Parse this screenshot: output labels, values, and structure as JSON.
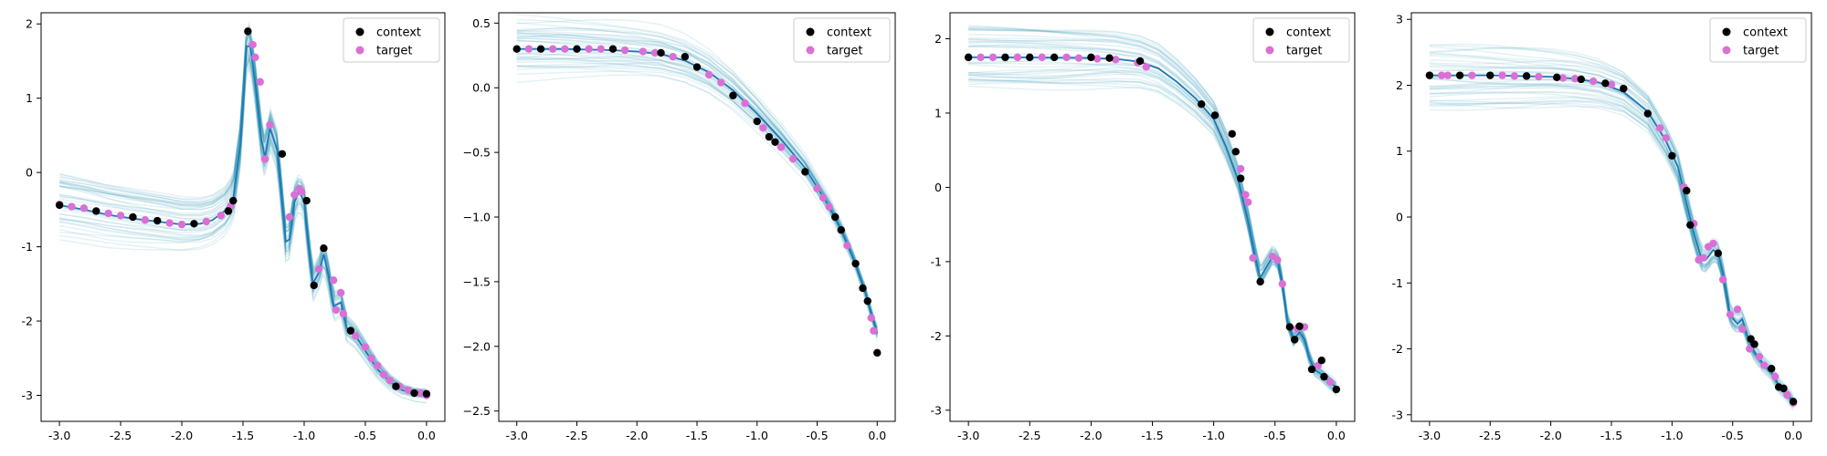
{
  "figure": {
    "legend": {
      "context_label": "context",
      "target_label": "target",
      "placement": "upper right"
    },
    "colors": {
      "context": "#000000",
      "target": "#da70d6",
      "mean": "#1f77b4",
      "samples": "#2a8fb0"
    }
  },
  "chart_data": [
    {
      "type": "line",
      "xlim": [
        -3.15,
        0.15
      ],
      "ylim": [
        -3.35,
        2.15
      ],
      "xticks": [
        "-3.0",
        "-2.5",
        "-2.0",
        "-1.5",
        "-1.0",
        "-0.5",
        "0.0"
      ],
      "xtick_values": [
        -3.0,
        -2.5,
        -2.0,
        -1.5,
        -1.0,
        -0.5,
        0.0
      ],
      "yticks": [
        "-3",
        "-2",
        "-1",
        "0",
        "1",
        "2"
      ],
      "ytick_values": [
        -3,
        -2,
        -1,
        0,
        1,
        2
      ],
      "mean_curve": [
        [
          -3.0,
          -0.44
        ],
        [
          -2.8,
          -0.5
        ],
        [
          -2.6,
          -0.57
        ],
        [
          -2.4,
          -0.62
        ],
        [
          -2.2,
          -0.66
        ],
        [
          -2.0,
          -0.7
        ],
        [
          -1.85,
          -0.69
        ],
        [
          -1.75,
          -0.64
        ],
        [
          -1.65,
          -0.52
        ],
        [
          -1.58,
          -0.35
        ],
        [
          -1.52,
          0.4
        ],
        [
          -1.47,
          1.7
        ],
        [
          -1.44,
          1.7
        ],
        [
          -1.4,
          1.2
        ],
        [
          -1.35,
          0.45
        ],
        [
          -1.32,
          0.2
        ],
        [
          -1.28,
          0.6
        ],
        [
          -1.22,
          0.3
        ],
        [
          -1.18,
          -0.4
        ],
        [
          -1.15,
          -0.93
        ],
        [
          -1.12,
          -0.9
        ],
        [
          -1.08,
          -0.4
        ],
        [
          -1.04,
          -0.25
        ],
        [
          -1.0,
          -0.4
        ],
        [
          -0.97,
          -0.9
        ],
        [
          -0.93,
          -1.5
        ],
        [
          -0.88,
          -1.35
        ],
        [
          -0.84,
          -1.1
        ],
        [
          -0.8,
          -1.4
        ],
        [
          -0.76,
          -1.8
        ],
        [
          -0.7,
          -1.75
        ],
        [
          -0.65,
          -2.1
        ],
        [
          -0.58,
          -2.2
        ],
        [
          -0.5,
          -2.4
        ],
        [
          -0.4,
          -2.65
        ],
        [
          -0.3,
          -2.82
        ],
        [
          -0.2,
          -2.93
        ],
        [
          -0.1,
          -2.98
        ],
        [
          0.0,
          -3.0
        ]
      ],
      "context_points": [
        [
          -3.0,
          -0.44
        ],
        [
          -2.7,
          -0.52
        ],
        [
          -2.4,
          -0.6
        ],
        [
          -2.2,
          -0.65
        ],
        [
          -1.9,
          -0.69
        ],
        [
          -1.62,
          -0.52
        ],
        [
          -1.58,
          -0.38
        ],
        [
          -1.46,
          1.9
        ],
        [
          -1.18,
          0.25
        ],
        [
          -0.98,
          -0.38
        ],
        [
          -0.92,
          -1.52
        ],
        [
          -0.84,
          -1.02
        ],
        [
          -0.62,
          -2.13
        ],
        [
          -0.25,
          -2.88
        ],
        [
          -0.1,
          -2.97
        ],
        [
          0.0,
          -2.98
        ]
      ],
      "target_points": [
        [
          -3.0,
          -0.43
        ],
        [
          -2.9,
          -0.46
        ],
        [
          -2.8,
          -0.48
        ],
        [
          -2.6,
          -0.55
        ],
        [
          -2.5,
          -0.58
        ],
        [
          -2.3,
          -0.64
        ],
        [
          -2.1,
          -0.68
        ],
        [
          -2.0,
          -0.7
        ],
        [
          -1.8,
          -0.66
        ],
        [
          -1.68,
          -0.58
        ],
        [
          -1.6,
          -0.45
        ],
        [
          -1.42,
          1.72
        ],
        [
          -1.4,
          1.55
        ],
        [
          -1.36,
          1.22
        ],
        [
          -1.32,
          0.18
        ],
        [
          -1.28,
          0.64
        ],
        [
          -1.12,
          -0.6
        ],
        [
          -1.08,
          -0.3
        ],
        [
          -1.04,
          -0.22
        ],
        [
          -1.02,
          -0.26
        ],
        [
          -0.88,
          -1.3
        ],
        [
          -0.76,
          -1.45
        ],
        [
          -0.74,
          -1.85
        ],
        [
          -0.7,
          -1.62
        ],
        [
          -0.68,
          -1.9
        ],
        [
          -0.58,
          -2.2
        ],
        [
          -0.5,
          -2.35
        ],
        [
          -0.45,
          -2.5
        ],
        [
          -0.4,
          -2.6
        ],
        [
          -0.35,
          -2.72
        ],
        [
          -0.3,
          -2.8
        ],
        [
          -0.22,
          -2.88
        ],
        [
          -0.15,
          -2.93
        ],
        [
          -0.05,
          -2.97
        ],
        [
          0.0,
          -3.0
        ]
      ]
    },
    {
      "type": "line",
      "xlim": [
        -3.15,
        0.15
      ],
      "ylim": [
        -2.58,
        0.58
      ],
      "xticks": [
        "-3.0",
        "-2.5",
        "-2.0",
        "-1.5",
        "-1.0",
        "-0.5",
        "0.0"
      ],
      "xtick_values": [
        -3.0,
        -2.5,
        -2.0,
        -1.5,
        -1.0,
        -0.5,
        0.0
      ],
      "yticks": [
        "−2.5",
        "−2.0",
        "−1.5",
        "−1.0",
        "−0.5",
        "0.0",
        "0.5"
      ],
      "ytick_values": [
        -2.5,
        -2.0,
        -1.5,
        -1.0,
        -0.5,
        0.0,
        0.5
      ],
      "mean_curve": [
        [
          -3.0,
          0.3
        ],
        [
          -2.6,
          0.3
        ],
        [
          -2.2,
          0.29
        ],
        [
          -2.0,
          0.28
        ],
        [
          -1.8,
          0.26
        ],
        [
          -1.6,
          0.21
        ],
        [
          -1.4,
          0.12
        ],
        [
          -1.2,
          -0.02
        ],
        [
          -1.0,
          -0.2
        ],
        [
          -0.8,
          -0.4
        ],
        [
          -0.6,
          -0.62
        ],
        [
          -0.4,
          -0.92
        ],
        [
          -0.3,
          -1.1
        ],
        [
          -0.2,
          -1.32
        ],
        [
          -0.1,
          -1.58
        ],
        [
          -0.05,
          -1.75
        ],
        [
          0.0,
          -1.9
        ]
      ],
      "context_points": [
        [
          -3.0,
          0.3
        ],
        [
          -2.8,
          0.3
        ],
        [
          -2.5,
          0.3
        ],
        [
          -2.2,
          0.3
        ],
        [
          -1.8,
          0.27
        ],
        [
          -1.6,
          0.24
        ],
        [
          -1.5,
          0.16
        ],
        [
          -1.2,
          -0.06
        ],
        [
          -1.0,
          -0.26
        ],
        [
          -0.9,
          -0.38
        ],
        [
          -0.85,
          -0.42
        ],
        [
          -0.6,
          -0.65
        ],
        [
          -0.35,
          -1.0
        ],
        [
          -0.3,
          -1.1
        ],
        [
          -0.18,
          -1.36
        ],
        [
          -0.12,
          -1.55
        ],
        [
          -0.08,
          -1.65
        ],
        [
          0.0,
          -2.05
        ]
      ],
      "target_points": [
        [
          -2.9,
          0.3
        ],
        [
          -2.7,
          0.3
        ],
        [
          -2.6,
          0.3
        ],
        [
          -2.4,
          0.3
        ],
        [
          -2.3,
          0.3
        ],
        [
          -2.1,
          0.29
        ],
        [
          -1.95,
          0.28
        ],
        [
          -1.85,
          0.27
        ],
        [
          -1.7,
          0.24
        ],
        [
          -1.4,
          0.1
        ],
        [
          -1.3,
          0.04
        ],
        [
          -1.1,
          -0.12
        ],
        [
          -0.95,
          -0.31
        ],
        [
          -0.8,
          -0.46
        ],
        [
          -0.7,
          -0.55
        ],
        [
          -0.5,
          -0.78
        ],
        [
          -0.45,
          -0.85
        ],
        [
          -0.4,
          -0.92
        ],
        [
          -0.25,
          -1.22
        ],
        [
          -0.05,
          -1.78
        ],
        [
          -0.03,
          -1.88
        ]
      ]
    },
    {
      "type": "line",
      "xlim": [
        -3.15,
        0.15
      ],
      "ylim": [
        -3.15,
        2.35
      ],
      "xticks": [
        "-3.0",
        "-2.5",
        "-2.0",
        "-1.5",
        "-1.0",
        "-0.5",
        "0.0"
      ],
      "xtick_values": [
        -3.0,
        -2.5,
        -2.0,
        -1.5,
        -1.0,
        -0.5,
        0.0
      ],
      "yticks": [
        "-3",
        "-2",
        "-1",
        "0",
        "1",
        "2"
      ],
      "ytick_values": [
        -3,
        -2,
        -1,
        0,
        1,
        2
      ],
      "mean_curve": [
        [
          -3.0,
          1.75
        ],
        [
          -2.5,
          1.75
        ],
        [
          -2.0,
          1.74
        ],
        [
          -1.8,
          1.73
        ],
        [
          -1.6,
          1.69
        ],
        [
          -1.45,
          1.6
        ],
        [
          -1.3,
          1.42
        ],
        [
          -1.15,
          1.2
        ],
        [
          -1.0,
          0.92
        ],
        [
          -0.9,
          0.55
        ],
        [
          -0.8,
          0.1
        ],
        [
          -0.72,
          -0.45
        ],
        [
          -0.66,
          -0.95
        ],
        [
          -0.62,
          -1.22
        ],
        [
          -0.58,
          -1.1
        ],
        [
          -0.52,
          -0.93
        ],
        [
          -0.48,
          -0.98
        ],
        [
          -0.44,
          -1.3
        ],
        [
          -0.4,
          -1.8
        ],
        [
          -0.35,
          -2.05
        ],
        [
          -0.3,
          -1.95
        ],
        [
          -0.26,
          -2.05
        ],
        [
          -0.22,
          -2.3
        ],
        [
          -0.18,
          -2.45
        ],
        [
          -0.12,
          -2.52
        ],
        [
          -0.08,
          -2.58
        ],
        [
          0.0,
          -2.7
        ]
      ],
      "context_points": [
        [
          -3.0,
          1.75
        ],
        [
          -2.7,
          1.75
        ],
        [
          -2.5,
          1.75
        ],
        [
          -2.3,
          1.75
        ],
        [
          -2.0,
          1.75
        ],
        [
          -1.85,
          1.74
        ],
        [
          -1.6,
          1.7
        ],
        [
          -1.1,
          1.12
        ],
        [
          -0.99,
          0.97
        ],
        [
          -0.85,
          0.72
        ],
        [
          -0.82,
          0.48
        ],
        [
          -0.78,
          0.12
        ],
        [
          -0.62,
          -1.27
        ],
        [
          -0.38,
          -1.88
        ],
        [
          -0.34,
          -2.05
        ],
        [
          -0.3,
          -1.87
        ],
        [
          -0.2,
          -2.45
        ],
        [
          -0.12,
          -2.33
        ],
        [
          -0.1,
          -2.55
        ],
        [
          0.0,
          -2.72
        ]
      ],
      "target_points": [
        [
          -3.0,
          1.75
        ],
        [
          -2.9,
          1.75
        ],
        [
          -2.8,
          1.75
        ],
        [
          -2.6,
          1.75
        ],
        [
          -2.4,
          1.75
        ],
        [
          -2.2,
          1.75
        ],
        [
          -2.1,
          1.74
        ],
        [
          -1.95,
          1.73
        ],
        [
          -1.8,
          1.72
        ],
        [
          -1.62,
          1.68
        ],
        [
          -1.55,
          1.62
        ],
        [
          -0.78,
          0.25
        ],
        [
          -0.74,
          -0.1
        ],
        [
          -0.72,
          -0.2
        ],
        [
          -0.68,
          -0.95
        ],
        [
          -0.52,
          -0.93
        ],
        [
          -0.48,
          -0.98
        ],
        [
          -0.44,
          -1.3
        ],
        [
          -0.32,
          -1.9
        ],
        [
          -0.26,
          -1.88
        ],
        [
          -0.15,
          -2.4
        ],
        [
          -0.05,
          -2.62
        ]
      ]
    },
    {
      "type": "line",
      "xlim": [
        -3.15,
        0.15
      ],
      "ylim": [
        -3.1,
        3.1
      ],
      "xticks": [
        "-3.0",
        "-2.5",
        "-2.0",
        "-1.5",
        "-1.0",
        "-0.5",
        "0.0"
      ],
      "xtick_values": [
        -3.0,
        -2.5,
        -2.0,
        -1.5,
        -1.0,
        -0.5,
        0.0
      ],
      "yticks": [
        "-3",
        "-2",
        "-1",
        "0",
        "1",
        "2",
        "3"
      ],
      "ytick_values": [
        -3,
        -2,
        -1,
        0,
        1,
        2,
        3
      ],
      "mean_curve": [
        [
          -3.0,
          2.15
        ],
        [
          -2.5,
          2.15
        ],
        [
          -2.0,
          2.13
        ],
        [
          -1.8,
          2.1
        ],
        [
          -1.6,
          2.04
        ],
        [
          -1.4,
          1.9
        ],
        [
          -1.2,
          1.6
        ],
        [
          -1.05,
          1.15
        ],
        [
          -0.95,
          0.75
        ],
        [
          -0.88,
          0.2
        ],
        [
          -0.82,
          -0.25
        ],
        [
          -0.76,
          -0.62
        ],
        [
          -0.72,
          -0.65
        ],
        [
          -0.66,
          -0.5
        ],
        [
          -0.62,
          -0.55
        ],
        [
          -0.58,
          -0.85
        ],
        [
          -0.52,
          -1.5
        ],
        [
          -0.46,
          -1.62
        ],
        [
          -0.42,
          -1.55
        ],
        [
          -0.38,
          -1.8
        ],
        [
          -0.32,
          -2.05
        ],
        [
          -0.25,
          -2.22
        ],
        [
          -0.18,
          -2.35
        ],
        [
          -0.12,
          -2.55
        ],
        [
          -0.05,
          -2.68
        ],
        [
          0.0,
          -2.8
        ]
      ],
      "context_points": [
        [
          -3.0,
          2.15
        ],
        [
          -2.75,
          2.15
        ],
        [
          -2.5,
          2.15
        ],
        [
          -2.2,
          2.14
        ],
        [
          -1.95,
          2.12
        ],
        [
          -1.75,
          2.09
        ],
        [
          -1.55,
          2.03
        ],
        [
          -1.4,
          1.95
        ],
        [
          -1.2,
          1.57
        ],
        [
          -1.0,
          0.93
        ],
        [
          -0.88,
          0.4
        ],
        [
          -0.85,
          -0.12
        ],
        [
          -0.62,
          -0.55
        ],
        [
          -0.35,
          -1.85
        ],
        [
          -0.32,
          -1.93
        ],
        [
          -0.18,
          -2.3
        ],
        [
          -0.12,
          -2.58
        ],
        [
          -0.08,
          -2.6
        ],
        [
          0.0,
          -2.8
        ]
      ],
      "target_points": [
        [
          -3.0,
          2.15
        ],
        [
          -2.9,
          2.15
        ],
        [
          -2.85,
          2.15
        ],
        [
          -2.65,
          2.15
        ],
        [
          -2.4,
          2.15
        ],
        [
          -2.3,
          2.14
        ],
        [
          -2.1,
          2.13
        ],
        [
          -1.9,
          2.11
        ],
        [
          -1.8,
          2.1
        ],
        [
          -1.65,
          2.06
        ],
        [
          -1.5,
          2.01
        ],
        [
          -1.1,
          1.35
        ],
        [
          -1.05,
          1.2
        ],
        [
          -0.9,
          0.45
        ],
        [
          -0.82,
          -0.1
        ],
        [
          -0.78,
          -0.65
        ],
        [
          -0.74,
          -0.62
        ],
        [
          -0.7,
          -0.45
        ],
        [
          -0.66,
          -0.4
        ],
        [
          -0.58,
          -0.95
        ],
        [
          -0.52,
          -1.48
        ],
        [
          -0.46,
          -1.4
        ],
        [
          -0.42,
          -1.7
        ],
        [
          -0.36,
          -2.0
        ],
        [
          -0.28,
          -2.12
        ],
        [
          -0.24,
          -2.25
        ],
        [
          -0.15,
          -2.42
        ],
        [
          -0.05,
          -2.7
        ],
        [
          0.0,
          -2.82
        ]
      ]
    }
  ]
}
